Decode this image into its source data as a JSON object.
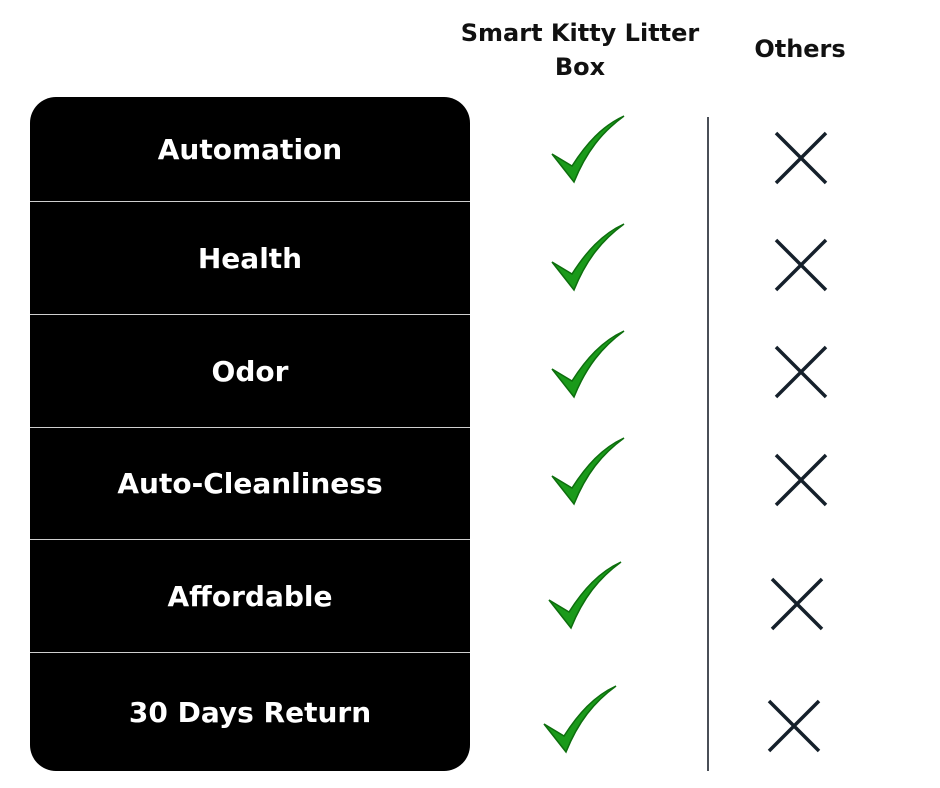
{
  "columns": {
    "product": "Smart Kitty Litter Box",
    "others": "Others"
  },
  "rows": [
    {
      "feature": "Automation",
      "product": "check",
      "others": "cross"
    },
    {
      "feature": "Health",
      "product": "check",
      "others": "cross"
    },
    {
      "feature": "Odor",
      "product": "check",
      "others": "cross"
    },
    {
      "feature": "Auto-Cleanliness",
      "product": "check",
      "others": "cross"
    },
    {
      "feature": "Affordable",
      "product": "check",
      "others": "cross"
    },
    {
      "feature": "30 Days Return",
      "product": "check",
      "others": "cross"
    }
  ],
  "colors": {
    "check": "#1a9a1a",
    "cross": "#15202b",
    "panel": "#000000"
  }
}
